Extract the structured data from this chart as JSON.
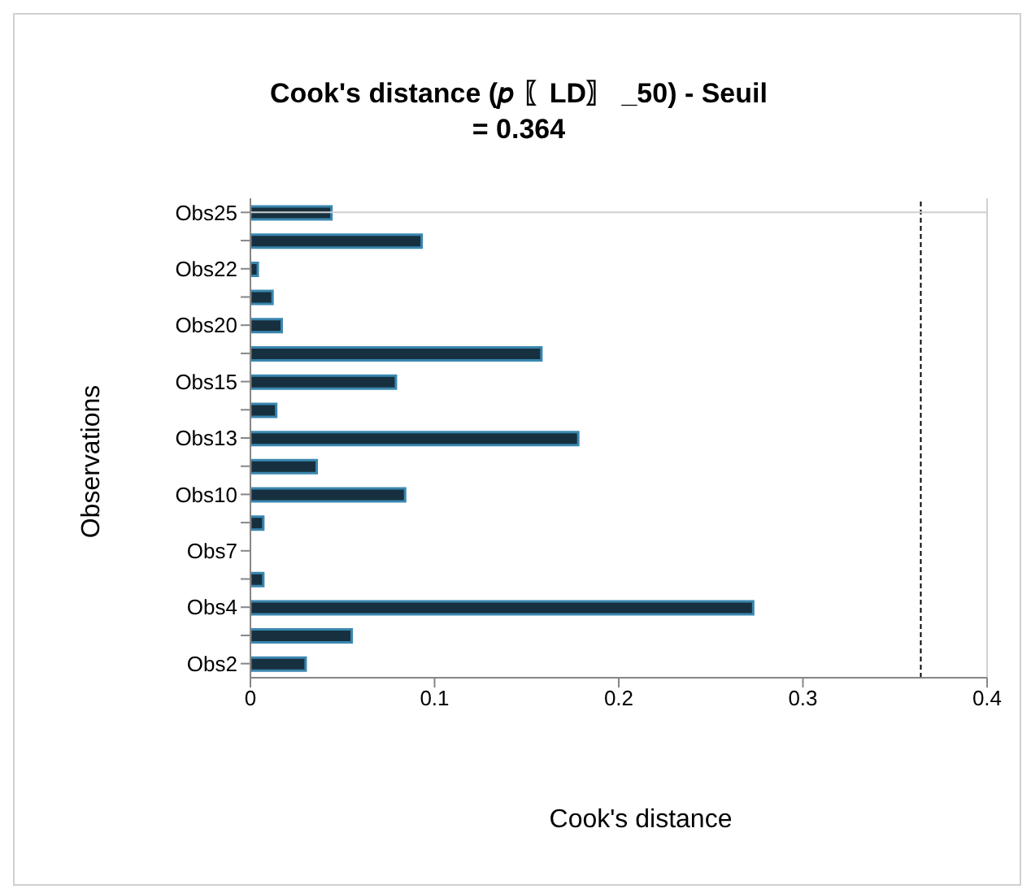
{
  "chart_data": {
    "type": "bar",
    "orientation": "horizontal",
    "title": "Cook's distance (𝑝 〖LD〗 _50) - Seuil = 0.364",
    "xlabel": "Cook's distance",
    "ylabel": "Observations",
    "categories": [
      "Obs25",
      null,
      "Obs22",
      null,
      "Obs20",
      null,
      "Obs15",
      null,
      "Obs13",
      null,
      "Obs10",
      null,
      "Obs7",
      null,
      "Obs4",
      null,
      "Obs2"
    ],
    "values": [
      0.044,
      0.093,
      0.004,
      0.012,
      0.017,
      0.158,
      0.079,
      0.014,
      0.178,
      0.036,
      0.084,
      0.007,
      0,
      0.007,
      0.273,
      0.055,
      0.03
    ],
    "color": "#17303f",
    "xlim": [
      0,
      0.4
    ],
    "xticks": [
      0,
      0.1,
      0.2,
      0.3,
      0.4
    ],
    "ref_lines": [
      {
        "axis": "x",
        "value": 0.364,
        "color": "#000000",
        "line_style": "dashed"
      }
    ],
    "grid": false
  }
}
